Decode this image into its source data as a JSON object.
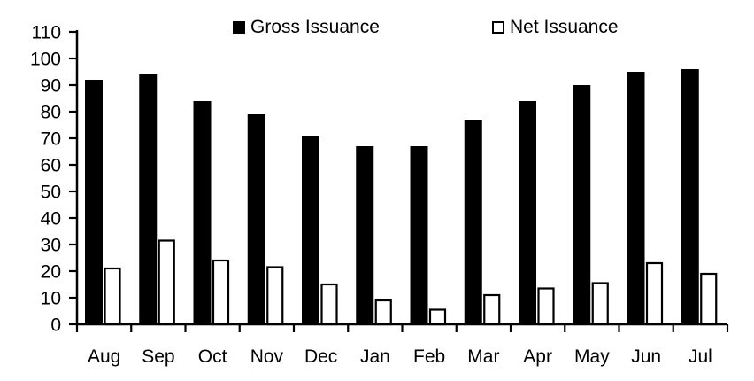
{
  "chart_data": {
    "type": "bar",
    "categories": [
      "Aug",
      "Sep",
      "Oct",
      "Nov",
      "Dec",
      "Jan",
      "Feb",
      "Mar",
      "Apr",
      "May",
      "Jun",
      "Jul"
    ],
    "series": [
      {
        "name": "Gross Issuance",
        "fill": "#000000",
        "stroke": "#000000",
        "values": [
          92,
          94,
          84,
          79,
          71,
          67,
          67,
          77,
          84,
          90,
          95,
          96
        ]
      },
      {
        "name": "Net Issuance",
        "fill": "#ffffff",
        "stroke": "#000000",
        "values": [
          21,
          31.5,
          24,
          21.5,
          15,
          9,
          5.5,
          11,
          13.5,
          15.5,
          23,
          19
        ]
      }
    ],
    "ylim": [
      0,
      110
    ],
    "yticks": [
      0,
      10,
      20,
      30,
      40,
      50,
      60,
      70,
      80,
      90,
      100,
      110
    ],
    "grid": false,
    "legend_position": "top",
    "background": "#ffffff",
    "axis_color": "#000000",
    "text_color": "#000000"
  }
}
